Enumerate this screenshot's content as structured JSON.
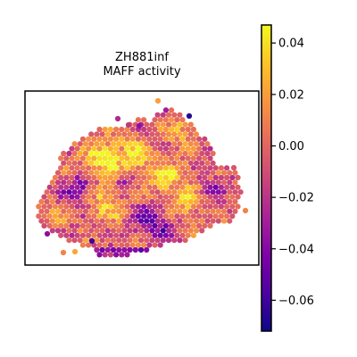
{
  "chart_data": {
    "type": "heatmap",
    "title": "ZH881inf",
    "subtitle": "MAFF activity",
    "colormap": "plasma",
    "colorbar": {
      "vmin": -0.072,
      "vmax": 0.047,
      "ticks": [
        0.04,
        0.02,
        0.0,
        -0.02,
        -0.04,
        -0.06
      ],
      "tick_labels": [
        "0.04",
        "0.02",
        "0.00",
        "−0.02",
        "−0.04",
        "−0.06"
      ]
    },
    "spot_value_range": [
      -0.072,
      0.047
    ],
    "axes": {
      "grid": false,
      "ticks": false
    }
  }
}
